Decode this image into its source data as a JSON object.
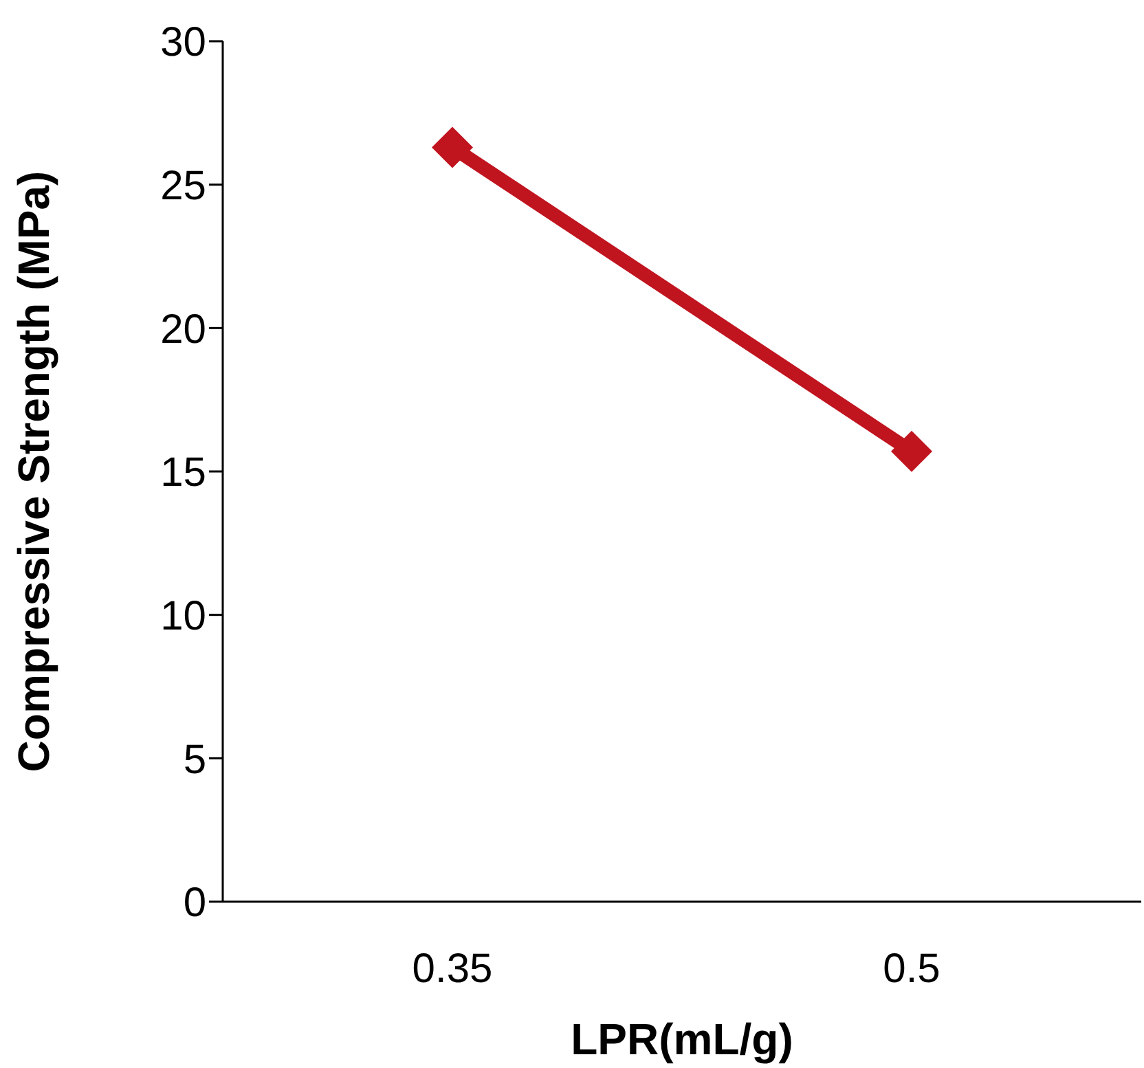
{
  "chart_data": {
    "type": "line",
    "xlabel": "LPR(mL/g)",
    "ylabel": "Compressive Strength (MPa)",
    "categories": [
      "0.35",
      "0.5"
    ],
    "series": [
      {
        "color": "#c0141f",
        "values": [
          26.3,
          15.7
        ]
      }
    ],
    "ylim": [
      0,
      30
    ],
    "yticks": [
      0,
      5,
      10,
      15,
      20,
      25,
      30
    ],
    "grid": false,
    "legend": false,
    "marker": "diamond",
    "line_style": "solid"
  }
}
